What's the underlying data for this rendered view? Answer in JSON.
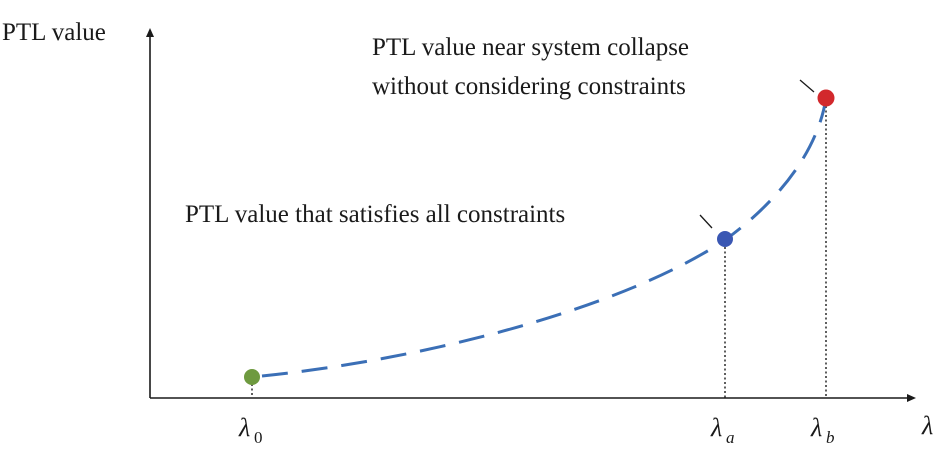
{
  "axes": {
    "y_label": "PTL value",
    "x_label": "λ"
  },
  "ticks": [
    {
      "symbol": "λ",
      "subscript": "0",
      "subscript_italic": false
    },
    {
      "symbol": "λ",
      "subscript": "a",
      "subscript_italic": true
    },
    {
      "symbol": "λ",
      "subscript": "b",
      "subscript_italic": true
    }
  ],
  "annotations": {
    "upper_line1": "PTL value near system collapse",
    "upper_line2": "without considering constraints",
    "middle": "PTL value that satisfies all constraints"
  },
  "points": {
    "start": {
      "name": "lambda-0-point",
      "color": "#6e9a3f"
    },
    "constrained": {
      "name": "lambda-a-point",
      "color": "#3a57b3"
    },
    "collapse": {
      "name": "lambda-b-point",
      "color": "#d2282c"
    }
  },
  "curve": {
    "color": "#3b6fb6",
    "style": "dashed"
  }
}
